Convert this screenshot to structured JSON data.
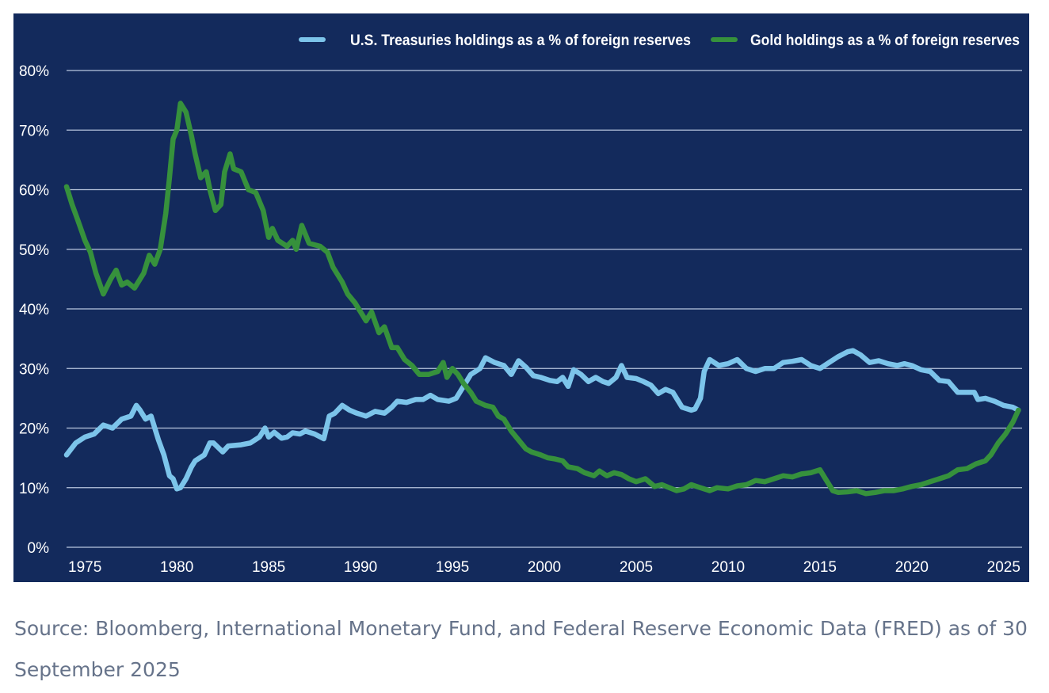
{
  "chart_data": {
    "type": "line",
    "title": "",
    "xlabel": "",
    "ylabel": "",
    "xlim": [
      1974,
      2026
    ],
    "ylim": [
      0,
      80
    ],
    "x_ticks": [
      1975,
      1980,
      1985,
      1990,
      1995,
      2000,
      2005,
      2010,
      2015,
      2020,
      2025
    ],
    "y_ticks": [
      0,
      10,
      20,
      30,
      40,
      50,
      60,
      70,
      80
    ],
    "y_tick_labels": [
      "0%",
      "10%",
      "20%",
      "30%",
      "40%",
      "50%",
      "60%",
      "70%",
      "80%"
    ],
    "grid": "horizontal",
    "legend_position": "top-right",
    "series": [
      {
        "name": "U.S. Treasuries holdings as a % of foreign reserves",
        "color": "#7cc4ea",
        "points": [
          [
            1974.0,
            15.5
          ],
          [
            1974.5,
            17.5
          ],
          [
            1975.0,
            18.5
          ],
          [
            1975.5,
            19.0
          ],
          [
            1976.0,
            20.5
          ],
          [
            1976.5,
            20.0
          ],
          [
            1977.0,
            21.5
          ],
          [
            1977.5,
            22.0
          ],
          [
            1977.8,
            23.8
          ],
          [
            1978.0,
            23.0
          ],
          [
            1978.3,
            21.5
          ],
          [
            1978.6,
            22.0
          ],
          [
            1979.0,
            18.0
          ],
          [
            1979.3,
            15.5
          ],
          [
            1979.6,
            12.0
          ],
          [
            1979.8,
            11.5
          ],
          [
            1980.0,
            9.8
          ],
          [
            1980.2,
            10.0
          ],
          [
            1980.5,
            11.5
          ],
          [
            1980.8,
            13.5
          ],
          [
            1981.0,
            14.5
          ],
          [
            1981.5,
            15.5
          ],
          [
            1981.8,
            17.5
          ],
          [
            1982.0,
            17.5
          ],
          [
            1982.5,
            16.0
          ],
          [
            1982.8,
            17.0
          ],
          [
            1983.5,
            17.2
          ],
          [
            1984.0,
            17.5
          ],
          [
            1984.5,
            18.5
          ],
          [
            1984.8,
            20.0
          ],
          [
            1985.0,
            18.5
          ],
          [
            1985.3,
            19.3
          ],
          [
            1985.7,
            18.3
          ],
          [
            1986.0,
            18.5
          ],
          [
            1986.3,
            19.2
          ],
          [
            1986.7,
            19.0
          ],
          [
            1987.0,
            19.5
          ],
          [
            1987.5,
            19.0
          ],
          [
            1988.0,
            18.2
          ],
          [
            1988.3,
            22.0
          ],
          [
            1988.6,
            22.5
          ],
          [
            1989.0,
            23.8
          ],
          [
            1989.4,
            23.0
          ],
          [
            1989.8,
            22.5
          ],
          [
            1990.3,
            22.0
          ],
          [
            1990.8,
            22.8
          ],
          [
            1991.3,
            22.5
          ],
          [
            1991.7,
            23.5
          ],
          [
            1992.0,
            24.5
          ],
          [
            1992.5,
            24.3
          ],
          [
            1993.0,
            24.8
          ],
          [
            1993.4,
            24.8
          ],
          [
            1993.8,
            25.5
          ],
          [
            1994.2,
            24.8
          ],
          [
            1994.8,
            24.5
          ],
          [
            1995.2,
            25.0
          ],
          [
            1995.6,
            27.0
          ],
          [
            1996.0,
            29.0
          ],
          [
            1996.5,
            30.0
          ],
          [
            1996.8,
            31.8
          ],
          [
            1997.3,
            31.0
          ],
          [
            1997.8,
            30.5
          ],
          [
            1998.2,
            29.0
          ],
          [
            1998.6,
            31.3
          ],
          [
            1999.0,
            30.2
          ],
          [
            1999.4,
            28.8
          ],
          [
            1999.8,
            28.5
          ],
          [
            2000.3,
            28.0
          ],
          [
            2000.7,
            27.8
          ],
          [
            2001.0,
            28.5
          ],
          [
            2001.3,
            27.0
          ],
          [
            2001.6,
            29.8
          ],
          [
            2002.0,
            29.0
          ],
          [
            2002.4,
            27.8
          ],
          [
            2002.8,
            28.5
          ],
          [
            2003.2,
            27.8
          ],
          [
            2003.5,
            27.5
          ],
          [
            2003.9,
            28.5
          ],
          [
            2004.2,
            30.5
          ],
          [
            2004.5,
            28.5
          ],
          [
            2005.0,
            28.3
          ],
          [
            2005.4,
            27.8
          ],
          [
            2005.8,
            27.2
          ],
          [
            2006.2,
            25.8
          ],
          [
            2006.6,
            26.5
          ],
          [
            2007.0,
            26.0
          ],
          [
            2007.5,
            23.5
          ],
          [
            2008.0,
            23.0
          ],
          [
            2008.2,
            23.2
          ],
          [
            2008.5,
            25.0
          ],
          [
            2008.7,
            29.5
          ],
          [
            2009.0,
            31.5
          ],
          [
            2009.5,
            30.5
          ],
          [
            2010.0,
            30.8
          ],
          [
            2010.5,
            31.5
          ],
          [
            2011.0,
            30.0
          ],
          [
            2011.5,
            29.5
          ],
          [
            2012.0,
            30.0
          ],
          [
            2012.5,
            30.0
          ],
          [
            2013.0,
            31.0
          ],
          [
            2013.5,
            31.2
          ],
          [
            2014.0,
            31.5
          ],
          [
            2014.5,
            30.5
          ],
          [
            2015.0,
            30.0
          ],
          [
            2015.5,
            31.0
          ],
          [
            2016.0,
            32.0
          ],
          [
            2016.5,
            32.8
          ],
          [
            2016.8,
            33.0
          ],
          [
            2017.2,
            32.3
          ],
          [
            2017.7,
            31.0
          ],
          [
            2018.2,
            31.3
          ],
          [
            2018.7,
            30.8
          ],
          [
            2019.2,
            30.5
          ],
          [
            2019.6,
            30.8
          ],
          [
            2020.0,
            30.5
          ],
          [
            2020.5,
            29.8
          ],
          [
            2021.0,
            29.5
          ],
          [
            2021.5,
            28.0
          ],
          [
            2022.0,
            27.8
          ],
          [
            2022.5,
            26.0
          ],
          [
            2023.0,
            26.0
          ],
          [
            2023.4,
            26.0
          ],
          [
            2023.6,
            24.8
          ],
          [
            2024.0,
            25.0
          ],
          [
            2024.5,
            24.5
          ],
          [
            2025.0,
            23.8
          ],
          [
            2025.5,
            23.5
          ],
          [
            2025.8,
            23.0
          ]
        ]
      },
      {
        "name": "Gold holdings as a % of foreign reserves",
        "color": "#36913c",
        "points": [
          [
            1974.0,
            60.5
          ],
          [
            1974.3,
            57.5
          ],
          [
            1974.6,
            55.0
          ],
          [
            1975.0,
            51.5
          ],
          [
            1975.3,
            49.5
          ],
          [
            1975.6,
            46.0
          ],
          [
            1976.0,
            42.5
          ],
          [
            1976.4,
            45.0
          ],
          [
            1976.7,
            46.5
          ],
          [
            1977.0,
            44.0
          ],
          [
            1977.3,
            44.5
          ],
          [
            1977.7,
            43.5
          ],
          [
            1978.2,
            46.0
          ],
          [
            1978.5,
            49.0
          ],
          [
            1978.8,
            47.5
          ],
          [
            1979.1,
            50.0
          ],
          [
            1979.4,
            56.0
          ],
          [
            1979.6,
            62.0
          ],
          [
            1979.8,
            68.5
          ],
          [
            1980.0,
            70.0
          ],
          [
            1980.2,
            74.5
          ],
          [
            1980.5,
            73.0
          ],
          [
            1980.8,
            69.0
          ],
          [
            1981.0,
            66.0
          ],
          [
            1981.3,
            62.0
          ],
          [
            1981.6,
            63.0
          ],
          [
            1981.8,
            60.0
          ],
          [
            1982.1,
            56.5
          ],
          [
            1982.4,
            57.5
          ],
          [
            1982.6,
            63.0
          ],
          [
            1982.9,
            66.0
          ],
          [
            1983.1,
            63.5
          ],
          [
            1983.5,
            63.0
          ],
          [
            1983.9,
            60.0
          ],
          [
            1984.3,
            59.5
          ],
          [
            1984.7,
            56.5
          ],
          [
            1985.0,
            52.0
          ],
          [
            1985.2,
            53.5
          ],
          [
            1985.5,
            51.5
          ],
          [
            1986.0,
            50.5
          ],
          [
            1986.3,
            51.5
          ],
          [
            1986.5,
            50.0
          ],
          [
            1986.8,
            54.0
          ],
          [
            1987.2,
            51.0
          ],
          [
            1987.8,
            50.5
          ],
          [
            1988.2,
            49.5
          ],
          [
            1988.5,
            47.0
          ],
          [
            1989.0,
            44.5
          ],
          [
            1989.3,
            42.5
          ],
          [
            1989.7,
            41.0
          ],
          [
            1990.0,
            39.5
          ],
          [
            1990.3,
            38.0
          ],
          [
            1990.6,
            39.5
          ],
          [
            1991.0,
            36.0
          ],
          [
            1991.3,
            37.0
          ],
          [
            1991.7,
            33.5
          ],
          [
            1992.0,
            33.5
          ],
          [
            1992.4,
            31.5
          ],
          [
            1992.8,
            30.5
          ],
          [
            1993.2,
            29.0
          ],
          [
            1993.7,
            29.0
          ],
          [
            1994.2,
            29.5
          ],
          [
            1994.5,
            31.0
          ],
          [
            1994.7,
            28.5
          ],
          [
            1995.0,
            30.0
          ],
          [
            1995.3,
            29.0
          ],
          [
            1995.6,
            27.5
          ],
          [
            1996.0,
            26.0
          ],
          [
            1996.3,
            24.5
          ],
          [
            1996.8,
            23.8
          ],
          [
            1997.2,
            23.5
          ],
          [
            1997.5,
            22.0
          ],
          [
            1997.8,
            21.5
          ],
          [
            1998.2,
            19.5
          ],
          [
            1998.6,
            18.0
          ],
          [
            1999.0,
            16.5
          ],
          [
            1999.3,
            16.0
          ],
          [
            1999.8,
            15.5
          ],
          [
            2000.2,
            15.0
          ],
          [
            2000.6,
            14.8
          ],
          [
            2001.0,
            14.5
          ],
          [
            2001.3,
            13.5
          ],
          [
            2001.8,
            13.2
          ],
          [
            2002.2,
            12.5
          ],
          [
            2002.7,
            12.0
          ],
          [
            2003.0,
            12.8
          ],
          [
            2003.4,
            12.0
          ],
          [
            2003.8,
            12.5
          ],
          [
            2004.2,
            12.2
          ],
          [
            2004.6,
            11.5
          ],
          [
            2005.0,
            11.0
          ],
          [
            2005.5,
            11.5
          ],
          [
            2006.0,
            10.2
          ],
          [
            2006.4,
            10.5
          ],
          [
            2006.8,
            10.0
          ],
          [
            2007.2,
            9.5
          ],
          [
            2007.6,
            9.8
          ],
          [
            2008.0,
            10.5
          ],
          [
            2008.5,
            10.0
          ],
          [
            2009.0,
            9.5
          ],
          [
            2009.4,
            10.0
          ],
          [
            2010.0,
            9.8
          ],
          [
            2010.5,
            10.3
          ],
          [
            2011.0,
            10.5
          ],
          [
            2011.5,
            11.2
          ],
          [
            2012.0,
            11.0
          ],
          [
            2012.5,
            11.5
          ],
          [
            2013.0,
            12.0
          ],
          [
            2013.5,
            11.8
          ],
          [
            2014.0,
            12.3
          ],
          [
            2014.5,
            12.5
          ],
          [
            2015.0,
            13.0
          ],
          [
            2015.3,
            11.5
          ],
          [
            2015.5,
            10.5
          ],
          [
            2015.7,
            9.5
          ],
          [
            2016.0,
            9.2
          ],
          [
            2016.5,
            9.3
          ],
          [
            2017.0,
            9.5
          ],
          [
            2017.5,
            9.0
          ],
          [
            2018.0,
            9.2
          ],
          [
            2018.5,
            9.5
          ],
          [
            2019.0,
            9.5
          ],
          [
            2019.5,
            9.8
          ],
          [
            2020.0,
            10.2
          ],
          [
            2020.5,
            10.5
          ],
          [
            2021.0,
            11.0
          ],
          [
            2021.5,
            11.5
          ],
          [
            2022.0,
            12.0
          ],
          [
            2022.5,
            13.0
          ],
          [
            2023.0,
            13.2
          ],
          [
            2023.5,
            14.0
          ],
          [
            2024.0,
            14.5
          ],
          [
            2024.3,
            15.5
          ],
          [
            2024.7,
            17.5
          ],
          [
            2025.1,
            19.0
          ],
          [
            2025.5,
            21.0
          ],
          [
            2025.8,
            23.0
          ]
        ]
      }
    ]
  },
  "source_note": "Source: Bloomberg, International Monetary Fund, and Federal Reserve Economic Data (FRED) as of 30 September 2025"
}
